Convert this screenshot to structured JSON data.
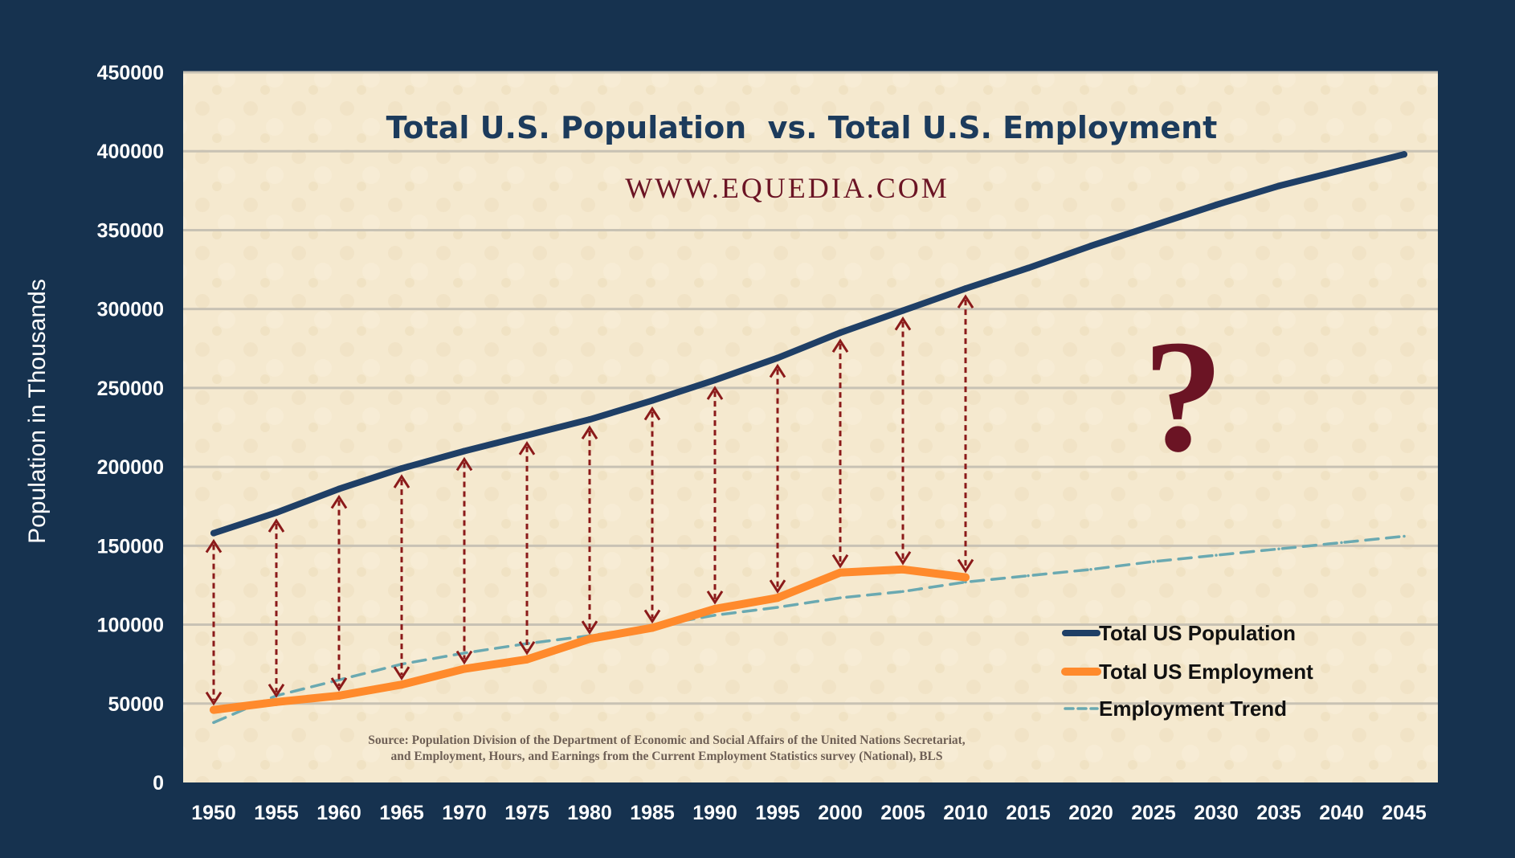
{
  "chart_data": {
    "type": "line",
    "title": "Total U.S. Population  vs. Total U.S. Employment",
    "watermark": "WWW.EQUEDIA.COM",
    "ylabel": "Population in Thousands",
    "xlabel": "",
    "ylim": [
      0,
      450000
    ],
    "yticks": [
      "450000",
      "400000",
      "350000",
      "300000",
      "250000",
      "200000",
      "150000",
      "100000",
      "50000",
      "0"
    ],
    "categories": [
      "1950",
      "1955",
      "1960",
      "1965",
      "1970",
      "1975",
      "1980",
      "1985",
      "1990",
      "1995",
      "2000",
      "2005",
      "2010",
      "2015",
      "2020",
      "2025",
      "2030",
      "2035",
      "2040",
      "2045"
    ],
    "grid": true,
    "legend_position": "bottom-right",
    "series": [
      {
        "name": "Total US Population",
        "color": "#1f3f66",
        "style": "solid",
        "values": [
          158000,
          171000,
          186000,
          199000,
          210000,
          220000,
          230000,
          242000,
          255000,
          269000,
          285000,
          299000,
          313000,
          326000,
          340000,
          353000,
          366000,
          378000,
          388000,
          398000
        ]
      },
      {
        "name": "Total US Employment",
        "color": "#ff8a2c",
        "style": "solid",
        "values": [
          46000,
          51000,
          55000,
          62000,
          72000,
          78000,
          91000,
          98000,
          110000,
          117000,
          133000,
          135000,
          130000,
          null,
          null,
          null,
          null,
          null,
          null,
          null
        ]
      },
      {
        "name": "Employment Trend",
        "color": "#6aa9b1",
        "style": "dashed",
        "values": [
          38000,
          55000,
          65000,
          75000,
          82000,
          88000,
          93000,
          99000,
          106000,
          111000,
          117000,
          121000,
          127000,
          131000,
          135000,
          140000,
          144000,
          148000,
          152000,
          156000
        ]
      }
    ],
    "annotation_mark": "?",
    "source": [
      "Source: Population Division of the Department of Economic and Social Affairs of the United Nations Secretariat,",
      "and Employment, Hours, and Earnings from the Current Employment Statistics survey (National), BLS"
    ],
    "colors": {
      "background": "#16324f",
      "plot_background": "#f5e9cf",
      "gap_arrows": "#8b1a1a",
      "accent_text": "#6b1424"
    }
  }
}
